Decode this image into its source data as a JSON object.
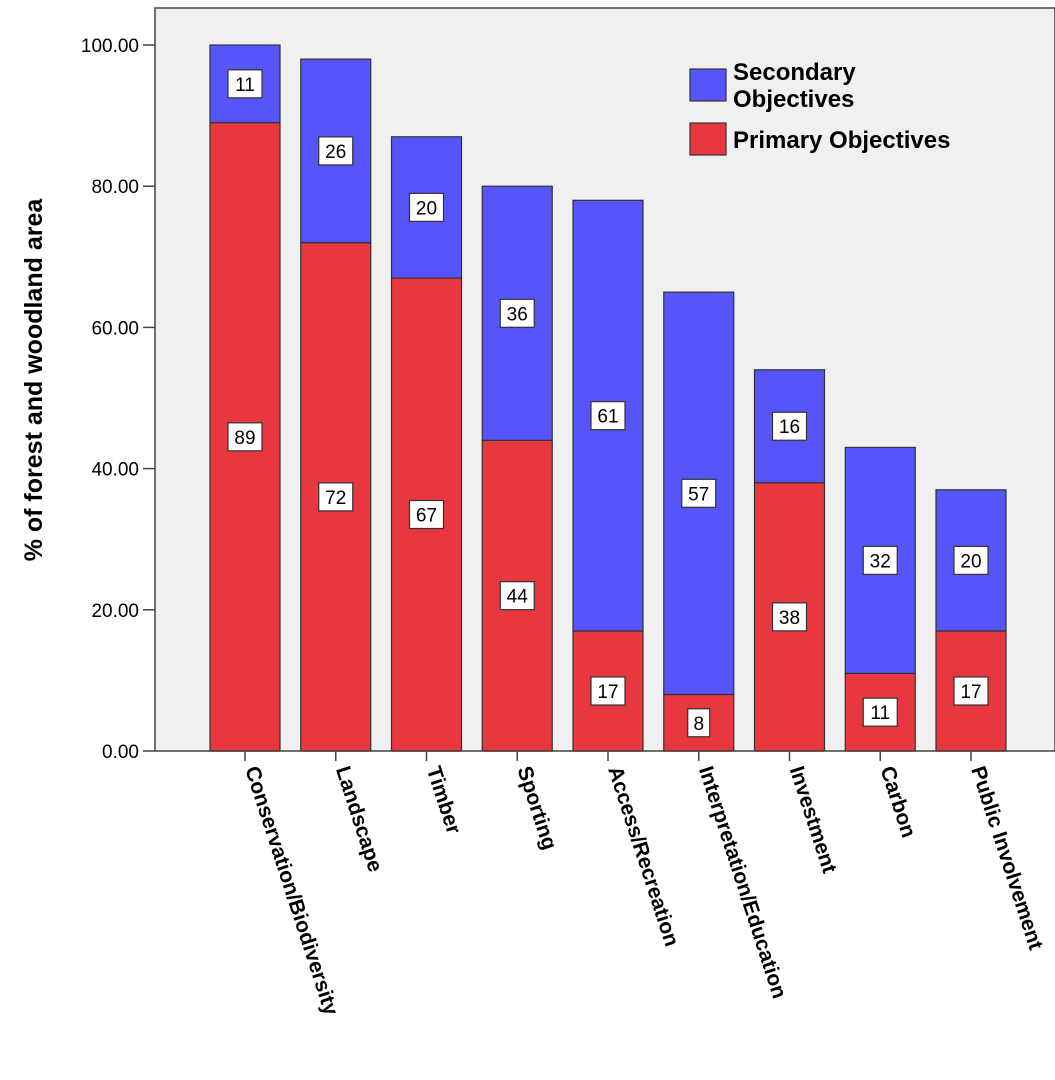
{
  "chart_data": {
    "type": "bar",
    "stacked": true,
    "ylabel": "% of forest and woodland area",
    "xlabel": "",
    "ylim": [
      0,
      100
    ],
    "yticks": [
      "0.00",
      "20.00",
      "40.00",
      "60.00",
      "80.00",
      "100.00"
    ],
    "categories": [
      "Conservation/Biodiversity",
      "Landscape",
      "Timber",
      "Sporting",
      "Access/Recreation",
      "Interpretation/Education",
      "Investment",
      "Carbon",
      "Public Involvement"
    ],
    "series": [
      {
        "name": "Primary Objectives",
        "color": "#e8373f",
        "values": [
          89,
          72,
          67,
          44,
          17,
          8,
          38,
          11,
          17
        ]
      },
      {
        "name": "Secondary Objectives",
        "color": "#5555fb",
        "values": [
          11,
          26,
          20,
          36,
          61,
          57,
          16,
          32,
          20
        ]
      }
    ],
    "legend": {
      "placement": "top-right",
      "entries": [
        {
          "lines": [
            "Secondary",
            "Objectives"
          ],
          "color": "#5555fb"
        },
        {
          "lines": [
            "Primary Objectives"
          ],
          "color": "#e8373f"
        }
      ]
    },
    "grid": false,
    "plot_background": "#f0f0f0"
  }
}
